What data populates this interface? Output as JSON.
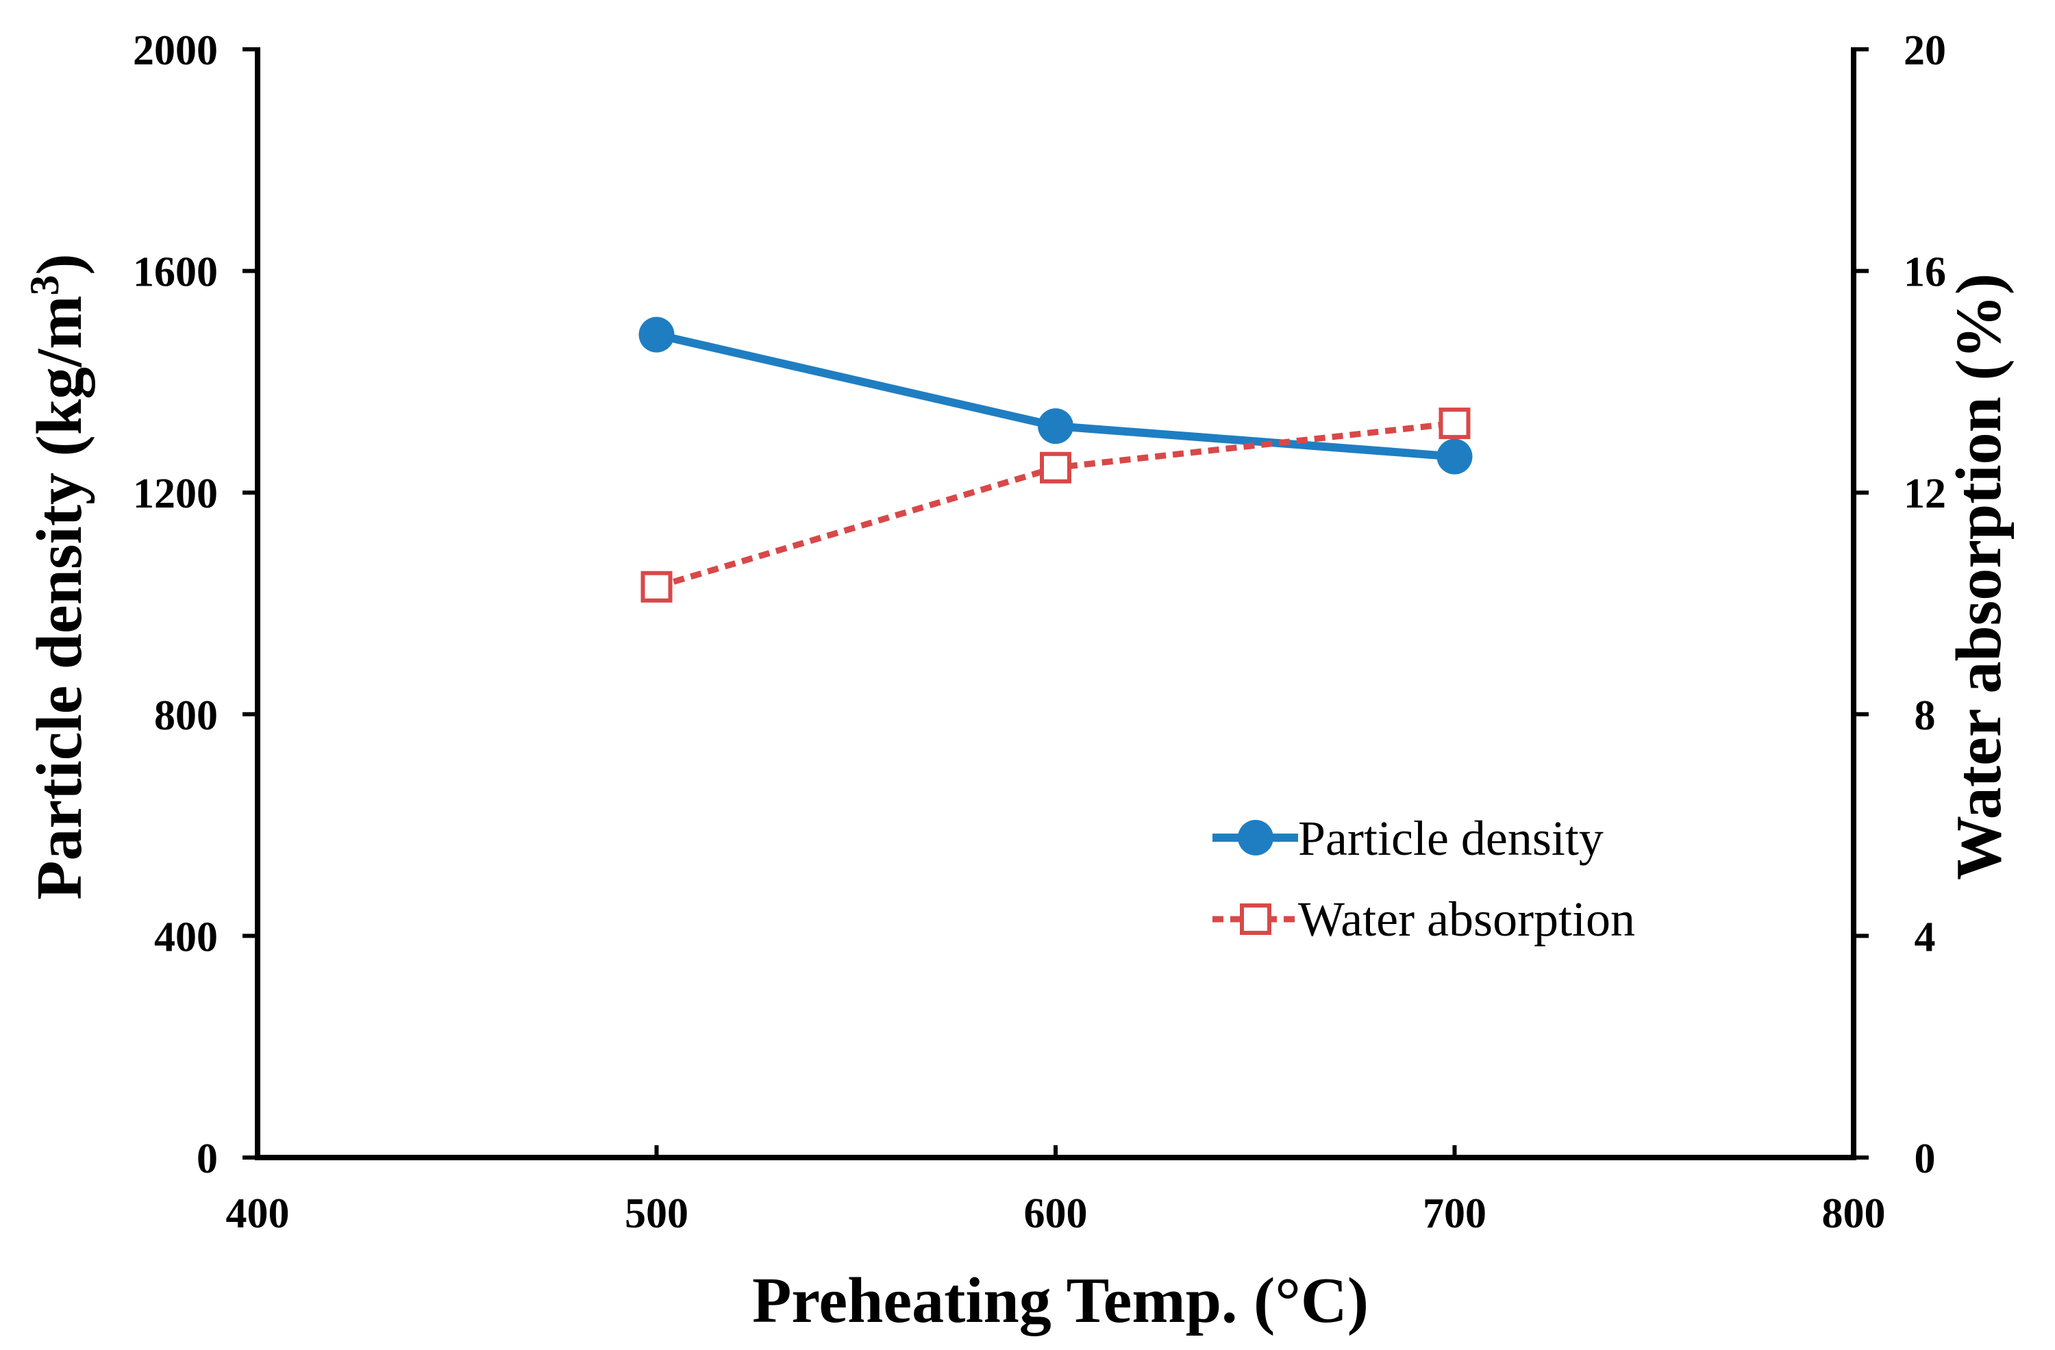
{
  "chart_data": {
    "type": "line",
    "title": "",
    "xlabel": "Preheating Temp. (°C)",
    "ylabel": "Particle density (kg/m",
    "ylabel_superscript": "3",
    "ylabel_suffix": ")",
    "y2label": "Water absorption (%)",
    "xlim": [
      400,
      800
    ],
    "ylim": [
      0,
      2000
    ],
    "y2lim": [
      0,
      20
    ],
    "xticks": [
      "400",
      "500",
      "600",
      "700",
      "800"
    ],
    "yticks": [
      "0",
      "400",
      "800",
      "1200",
      "1600",
      "2000"
    ],
    "y2ticks": [
      "0",
      "4",
      "8",
      "12",
      "16",
      "20"
    ],
    "grid": false,
    "legend_position": "lower-right",
    "series": [
      {
        "name": "Particle density",
        "axis": "left",
        "x": [
          500,
          600,
          700
        ],
        "values": [
          1485,
          1320,
          1265
        ],
        "color": "#1f7ec2",
        "line_style": "solid",
        "marker": "filled-circle"
      },
      {
        "name": "Water absorption",
        "axis": "right",
        "x": [
          500,
          600,
          700
        ],
        "values": [
          10.3,
          12.45,
          13.25
        ],
        "color": "#d94848",
        "line_style": "dashed",
        "marker": "open-square"
      }
    ]
  }
}
